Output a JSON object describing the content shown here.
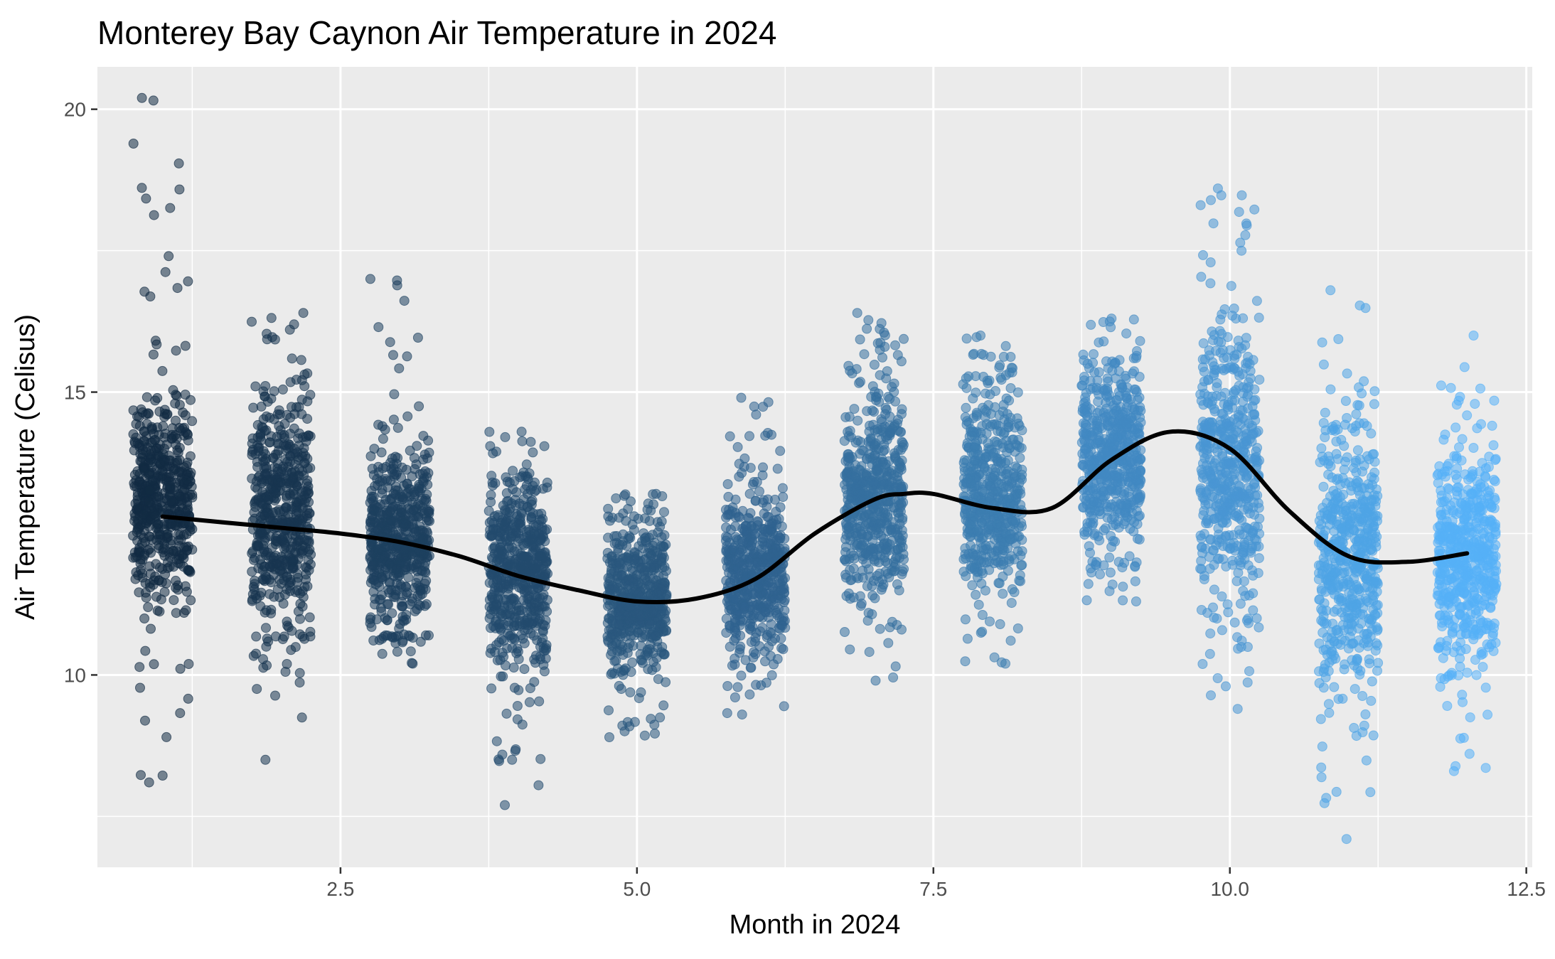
{
  "chart_data": {
    "type": "scatter",
    "title": "Monterey Bay Caynon Air Temperature in 2024",
    "xlabel": "Month in 2024",
    "ylabel": "Air Temperature (Celisus)",
    "xlim": [
      0.45,
      12.55
    ],
    "ylim": [
      6.6,
      20.75
    ],
    "x_ticks": [
      2.5,
      5.0,
      7.5,
      10.0,
      12.5
    ],
    "x_tick_labels": [
      "2.5",
      "5.0",
      "7.5",
      "10.0",
      "12.5"
    ],
    "y_ticks": [
      10,
      15,
      20
    ],
    "y_tick_labels": [
      "10",
      "15",
      "20"
    ],
    "grid": true,
    "legend": "none",
    "point_color_low": "#132b43",
    "point_color_high": "#56b1f7",
    "point_opacity": 0.55,
    "jitter_width": 0.25,
    "months": [
      {
        "month": 1,
        "center": 13.1,
        "core_min": 11.2,
        "core_max": 14.9,
        "min": 8.1,
        "max": 20.2
      },
      {
        "month": 2,
        "center": 12.9,
        "core_min": 10.7,
        "core_max": 15.0,
        "min": 8.5,
        "max": 16.4
      },
      {
        "month": 3,
        "center": 12.4,
        "core_min": 10.7,
        "core_max": 14.0,
        "min": 10.2,
        "max": 17.0
      },
      {
        "month": 4,
        "center": 11.8,
        "core_min": 9.8,
        "core_max": 13.4,
        "min": 7.7,
        "max": 14.3
      },
      {
        "month": 5,
        "center": 11.3,
        "core_min": 10.0,
        "core_max": 12.7,
        "min": 8.9,
        "max": 13.2
      },
      {
        "month": 6,
        "center": 11.7,
        "core_min": 10.3,
        "core_max": 13.3,
        "min": 9.3,
        "max": 14.9
      },
      {
        "month": 7,
        "center": 13.1,
        "core_min": 11.4,
        "core_max": 15.3,
        "min": 9.9,
        "max": 16.4
      },
      {
        "month": 8,
        "center": 13.0,
        "core_min": 11.6,
        "core_max": 15.2,
        "min": 10.2,
        "max": 16.0
      },
      {
        "month": 9,
        "center": 13.9,
        "core_min": 12.0,
        "core_max": 15.5,
        "min": 11.3,
        "max": 16.3
      },
      {
        "month": 10,
        "center": 13.7,
        "core_min": 11.0,
        "core_max": 16.3,
        "min": 9.4,
        "max": 18.6
      },
      {
        "month": 11,
        "center": 12.1,
        "core_min": 9.6,
        "core_max": 14.4,
        "min": 7.1,
        "max": 16.8
      },
      {
        "month": 12,
        "center": 12.1,
        "core_min": 10.0,
        "core_max": 13.8,
        "min": 8.3,
        "max": 16.0
      }
    ],
    "smooth_line": {
      "color": "#000000",
      "x": [
        1.0,
        1.5,
        2.0,
        2.5,
        3.0,
        3.5,
        4.0,
        4.5,
        5.0,
        5.5,
        6.0,
        6.5,
        7.0,
        7.25,
        7.5,
        8.0,
        8.5,
        9.0,
        9.5,
        10.0,
        10.5,
        11.0,
        11.5,
        12.0
      ],
      "y": [
        12.8,
        12.7,
        12.6,
        12.5,
        12.35,
        12.1,
        11.75,
        11.5,
        11.3,
        11.35,
        11.7,
        12.5,
        13.1,
        13.2,
        13.2,
        12.95,
        12.95,
        13.8,
        14.3,
        14.0,
        12.9,
        12.1,
        12.0,
        12.15
      ]
    }
  }
}
